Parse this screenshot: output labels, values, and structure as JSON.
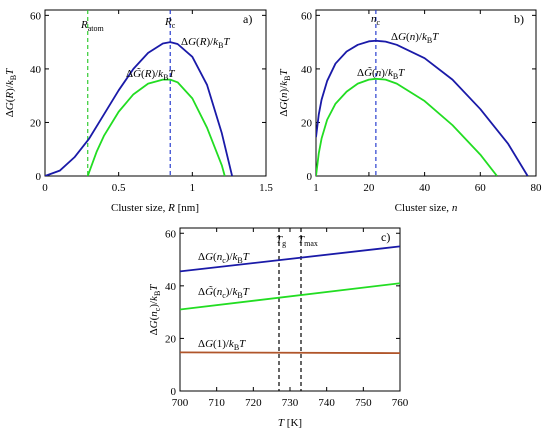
{
  "colors": {
    "blue": "#1a1aa8",
    "green": "#22dd22",
    "brown": "#b0552a",
    "blue_dashed": "#2b3fcf",
    "green_dashed": "#33cc33",
    "black": "#000000"
  },
  "chart_data": [
    {
      "type": "line",
      "panel_label": "a)",
      "xlabel": "Cluster size, R [nm]",
      "ylabel": "ΔG(R)/kBT",
      "xlim": [
        0,
        1.5
      ],
      "ylim": [
        0,
        62
      ],
      "xticks": [
        0,
        0.5,
        1,
        1.5
      ],
      "xtick_labels": [
        "0",
        "0.5",
        "1",
        "1.5"
      ],
      "yticks": [
        0,
        20,
        40,
        60
      ],
      "ytick_labels": [
        "0",
        "20",
        "40",
        "60"
      ],
      "series": [
        {
          "name": "ΔG(R)/kBT",
          "color": "#1a1aa8",
          "x": [
            0,
            0.1,
            0.2,
            0.3,
            0.4,
            0.5,
            0.6,
            0.7,
            0.8,
            0.85,
            0.9,
            1.0,
            1.1,
            1.2,
            1.27
          ],
          "y": [
            0,
            2,
            7,
            14,
            23,
            32,
            40,
            46,
            49.5,
            50,
            49.3,
            44.5,
            34,
            16,
            0
          ]
        },
        {
          "name": "ΔG̃(R)/kBT",
          "color": "#22dd22",
          "x": [
            0.29,
            0.35,
            0.4,
            0.5,
            0.6,
            0.7,
            0.8,
            0.85,
            0.9,
            1.0,
            1.1,
            1.2,
            1.22
          ],
          "y": [
            0,
            9,
            15,
            24,
            30.5,
            34.5,
            36,
            36,
            35,
            29,
            18,
            4,
            0
          ]
        }
      ],
      "vlines": [
        {
          "name": "Ratom",
          "x": 0.29,
          "color": "#33cc33"
        },
        {
          "name": "Rc",
          "x": 0.85,
          "color": "#2b3fcf"
        }
      ],
      "annotations": [
        "Ratom",
        "Rc",
        "ΔG(R)/kBT",
        "ΔG̃(R)/kBT"
      ]
    },
    {
      "type": "line",
      "panel_label": "b)",
      "xlabel": "Cluster size, n",
      "ylabel": "ΔG(n)/kBT",
      "xlim": [
        1,
        80
      ],
      "ylim": [
        0,
        62
      ],
      "xticks": [
        1,
        20,
        40,
        60,
        80
      ],
      "xtick_labels": [
        "1",
        "20",
        "40",
        "60",
        "80"
      ],
      "yticks": [
        0,
        20,
        40,
        60
      ],
      "ytick_labels": [
        "0",
        "20",
        "40",
        "60"
      ],
      "series": [
        {
          "name": "ΔG(n)/kBT",
          "color": "#1a1aa8",
          "x": [
            1,
            2,
            3,
            5,
            8,
            12,
            16,
            20,
            22.5,
            26,
            30,
            40,
            50,
            60,
            70,
            77
          ],
          "y": [
            14.5,
            23,
            28.5,
            35.5,
            42,
            46.5,
            49,
            50.3,
            50.5,
            50.2,
            49,
            44,
            36,
            25,
            12,
            0
          ]
        },
        {
          "name": "ΔG̃(n)/kBT",
          "color": "#22dd22",
          "x": [
            1,
            2,
            3,
            5,
            8,
            12,
            16,
            20,
            22.5,
            26,
            30,
            40,
            50,
            60,
            66
          ],
          "y": [
            0,
            8.5,
            14,
            21,
            27,
            31.5,
            34.5,
            36,
            36.3,
            36,
            34.5,
            28,
            19,
            8,
            0
          ]
        }
      ],
      "vlines": [
        {
          "name": "nc",
          "x": 22.5,
          "color": "#2b3fcf"
        }
      ],
      "annotations": [
        "nc",
        "ΔG(n)/kBT",
        "ΔG̃(n)/kBT"
      ]
    },
    {
      "type": "line",
      "panel_label": "c)",
      "xlabel": "T [K]",
      "ylabel": "ΔG(nc)/kBT",
      "xlim": [
        700,
        760
      ],
      "ylim": [
        0,
        62
      ],
      "xticks": [
        700,
        710,
        720,
        730,
        740,
        750,
        760
      ],
      "xtick_labels": [
        "700",
        "710",
        "720",
        "730",
        "740",
        "750",
        "760"
      ],
      "yticks": [
        0,
        20,
        40,
        60
      ],
      "ytick_labels": [
        "0",
        "20",
        "40",
        "60"
      ],
      "series": [
        {
          "name": "ΔG(nc)/kBT",
          "color": "#1a1aa8",
          "x": [
            700,
            760
          ],
          "y": [
            45.5,
            55
          ]
        },
        {
          "name": "ΔG̃(nc)/kBT",
          "color": "#22dd22",
          "x": [
            700,
            760
          ],
          "y": [
            31,
            41
          ]
        },
        {
          "name": "ΔG(1)/kBT",
          "color": "#b0552a",
          "x": [
            700,
            760
          ],
          "y": [
            14.7,
            14.4
          ]
        }
      ],
      "vlines": [
        {
          "name": "Tg",
          "x": 727,
          "color": "#000000"
        },
        {
          "name": "Tmax",
          "x": 733,
          "color": "#000000"
        }
      ],
      "annotations": [
        "Tg",
        "Tmax",
        "ΔG(nc)/kBT",
        "ΔG̃(nc)/kBT",
        "ΔG(1)/kBT"
      ]
    }
  ]
}
